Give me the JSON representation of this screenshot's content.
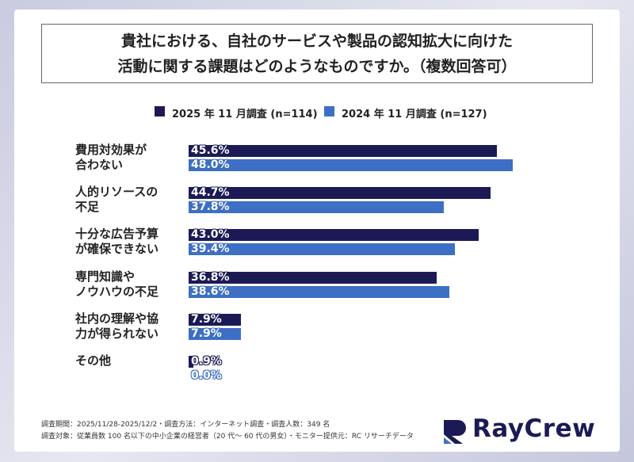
{
  "chart_data": {
    "type": "bar",
    "orientation": "horizontal",
    "title": "貴社における、自社のサービスや製品の認知拡大に向けた\n活動に関する課題はどのようなものですか。（複数回答可）",
    "categories": [
      "費用対効果が\n合わない",
      "人的リソースの\n不足",
      "十分な広告予算\nが確保できない",
      "専門知識や\nノウハウの不足",
      "社内の理解や協\n力が得られない",
      "その他"
    ],
    "series": [
      {
        "name": "2025 年 11 月調査 (n=114)",
        "color": "#1c1a55",
        "values": [
          45.6,
          44.7,
          43.0,
          36.8,
          7.9,
          0.9
        ],
        "value_labels": [
          "45.6%",
          "44.7%",
          "43.0%",
          "36.8%",
          "7.9%",
          "0.9%"
        ]
      },
      {
        "name": "2024 年 11 月調査 (n=127)",
        "color": "#3d6fc4",
        "values": [
          48.0,
          37.8,
          39.4,
          38.6,
          7.9,
          0.0
        ],
        "value_labels": [
          "48.0%",
          "37.8%",
          "39.4%",
          "38.6%",
          "7.9%",
          "0.0%"
        ]
      }
    ],
    "xlim": [
      0,
      60
    ],
    "legend": "top"
  },
  "footnotes": [
    "調査期間：2025/11/28-2025/12/2・調査方法：インターネット調査・調査人数：349 名",
    "調査対象：従業員数 100 名以下の中小企業の経営者（20 代〜 60 代の男女）・モニター提供元：RC リサーチデータ"
  ],
  "brand": "RayCrew"
}
